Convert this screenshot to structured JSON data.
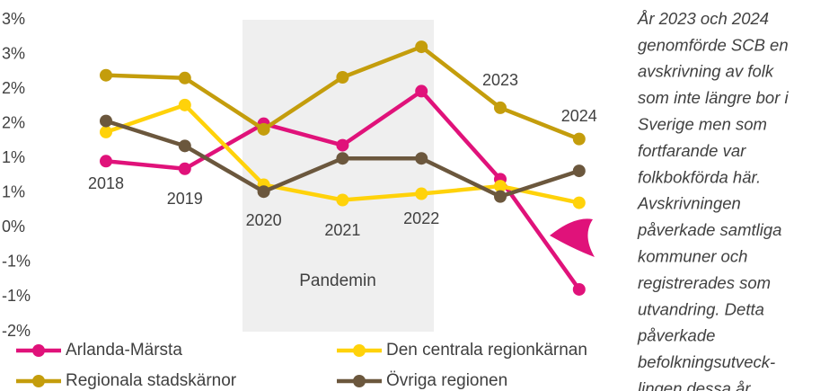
{
  "chart_data": {
    "type": "line",
    "categories": [
      "2018",
      "2019",
      "2020",
      "2021",
      "2022",
      "2023",
      "2024"
    ],
    "series": [
      {
        "name": "Arlanda-Märsta",
        "color": "#e0127a",
        "values": [
          0.96,
          0.85,
          1.5,
          1.19,
          1.97,
          0.7,
          -0.89
        ]
      },
      {
        "name": "Den centrala regionkärnan",
        "color": "#ffd20a",
        "values": [
          1.38,
          1.77,
          0.62,
          0.4,
          0.49,
          0.6,
          0.36
        ]
      },
      {
        "name": "Regionala stadskärnor",
        "color": "#c49d0c",
        "values": [
          2.2,
          2.16,
          1.42,
          2.17,
          2.61,
          1.73,
          1.28
        ]
      },
      {
        "name": "Övriga regionen",
        "color": "#6b573d",
        "values": [
          1.54,
          1.18,
          0.52,
          1.0,
          1.0,
          0.45,
          0.82
        ]
      }
    ],
    "ylim": [
      -1.5,
      3.0
    ],
    "yticks": [
      {
        "value": 3.0,
        "label": "3%"
      },
      {
        "value": 2.5,
        "label": "3%"
      },
      {
        "value": 2.0,
        "label": "2%"
      },
      {
        "value": 1.5,
        "label": "2%"
      },
      {
        "value": 1.0,
        "label": "1%"
      },
      {
        "value": 0.5,
        "label": "1%"
      },
      {
        "value": 0,
        "label": "0%"
      },
      {
        "value": -0.5,
        "label": "-1%"
      },
      {
        "value": -1.0,
        "label": "-1%"
      },
      {
        "value": -1.5,
        "label": "-2%"
      }
    ],
    "band_label": "Pandemin",
    "annotation_lines": [
      "År 2023 och 2024",
      "genomförde SCB en",
      "avskrivning  av folk",
      "som inte längre bor i",
      "Sverige men som",
      "fortfarande var",
      "folkbokförda här.",
      "Avskrivningen",
      "påverkade samtliga",
      "kommuner och",
      "registrerades som",
      "utvandring. Detta",
      "påverkade",
      "befolkningsutveck-",
      "lingen dessa år."
    ],
    "legend": "bottom"
  }
}
